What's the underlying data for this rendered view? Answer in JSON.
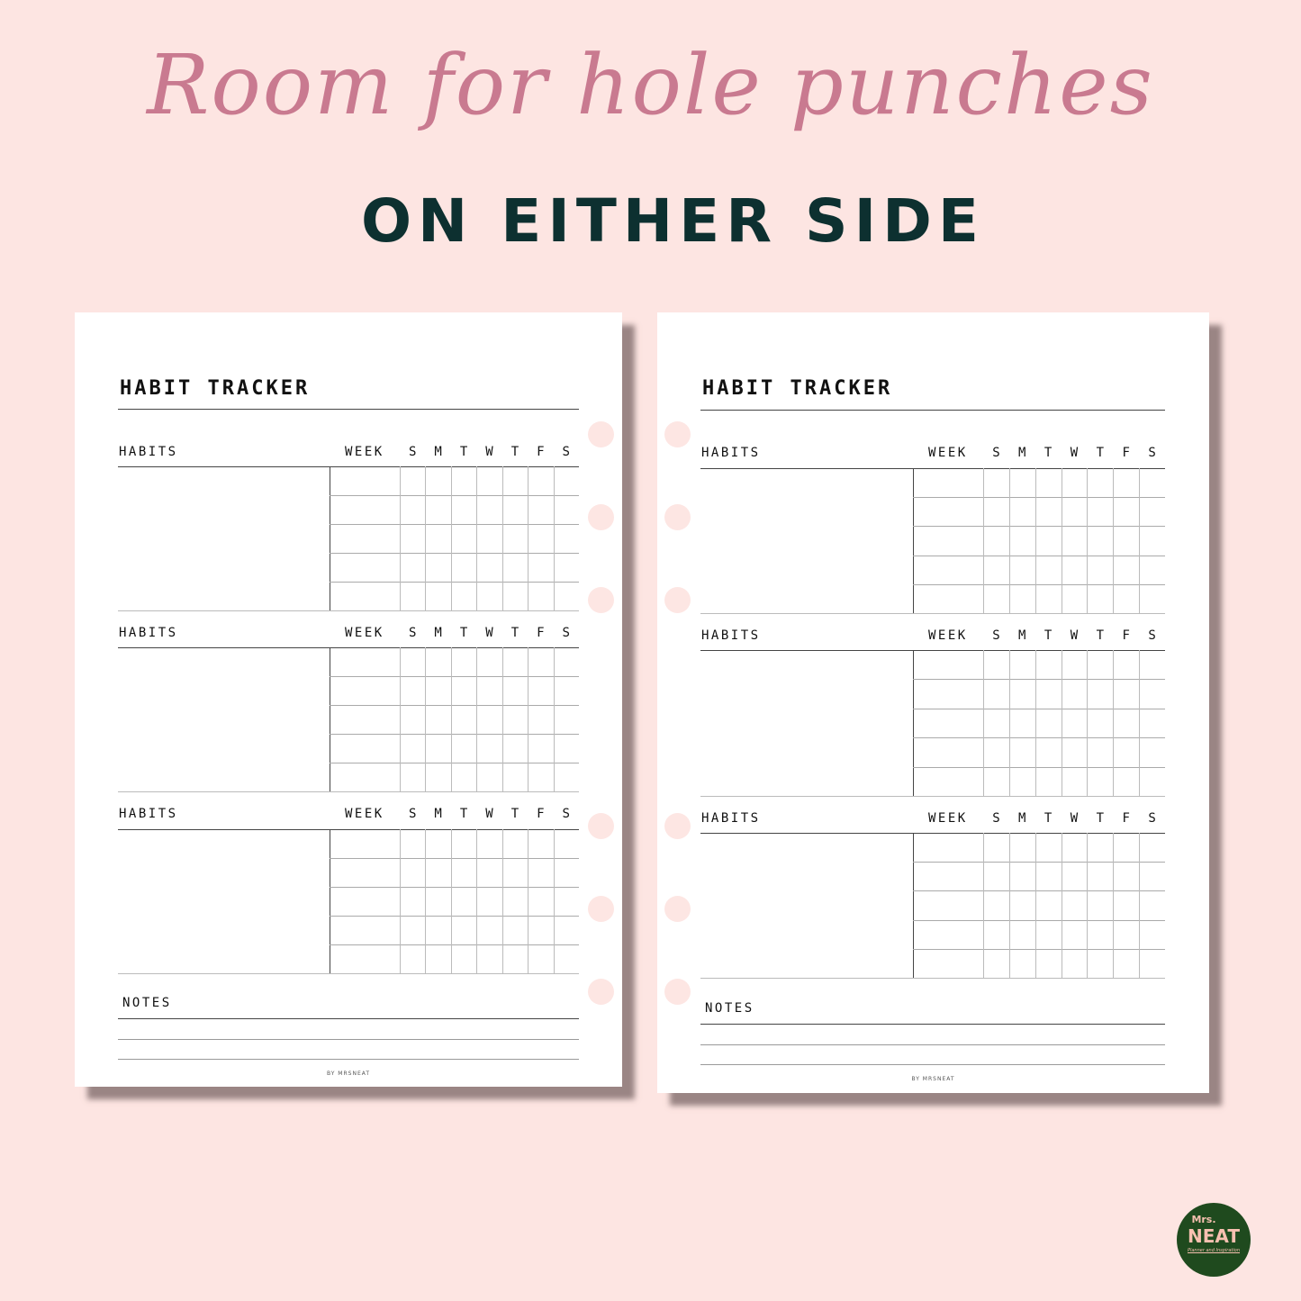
{
  "headline": {
    "script": "Room for hole punches",
    "subtitle": "ON EITHER SIDE"
  },
  "pages": [
    {
      "title": "HABIT TRACKER",
      "sections": [
        {
          "habits_label": "HABITS",
          "week_label": "WEEK",
          "days": [
            "S",
            "M",
            "T",
            "W",
            "T",
            "F",
            "S"
          ]
        },
        {
          "habits_label": "HABITS",
          "week_label": "WEEK",
          "days": [
            "S",
            "M",
            "T",
            "W",
            "T",
            "F",
            "S"
          ]
        },
        {
          "habits_label": "HABITS",
          "week_label": "WEEK",
          "days": [
            "S",
            "M",
            "T",
            "W",
            "T",
            "F",
            "S"
          ]
        }
      ],
      "notes_label": "NOTES",
      "footer": "BY MRSNEAT",
      "hole_side": "right"
    },
    {
      "title": "HABIT TRACKER",
      "sections": [
        {
          "habits_label": "HABITS",
          "week_label": "WEEK",
          "days": [
            "S",
            "M",
            "T",
            "W",
            "T",
            "F",
            "S"
          ]
        },
        {
          "habits_label": "HABITS",
          "week_label": "WEEK",
          "days": [
            "S",
            "M",
            "T",
            "W",
            "T",
            "F",
            "S"
          ]
        },
        {
          "habits_label": "HABITS",
          "week_label": "WEEK",
          "days": [
            "S",
            "M",
            "T",
            "W",
            "T",
            "F",
            "S"
          ]
        }
      ],
      "notes_label": "NOTES",
      "footer": "BY MRSNEAT",
      "hole_side": "left"
    }
  ],
  "logo": {
    "line1": "Mrs.",
    "line2": "NEAT",
    "tagline": "Planner and Inspiration"
  },
  "colors": {
    "background": "#fde5e2",
    "script": "#c97a90",
    "subtitle": "#0d3030",
    "hole": "#fde6e3",
    "logo": "#1f4a1e"
  }
}
